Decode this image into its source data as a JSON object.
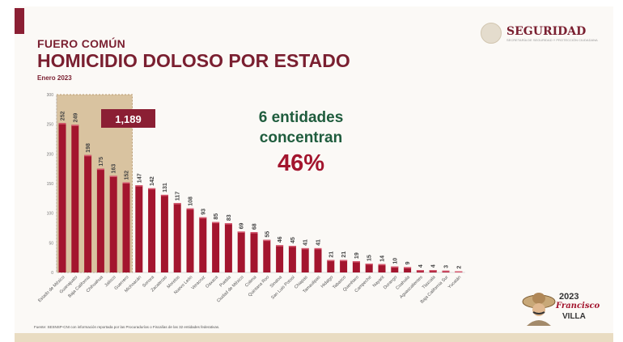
{
  "header": {
    "kicker": "FUERO COMÚN",
    "title": "HOMICIDIO DOLOSO POR ESTADO",
    "subtitle": "Enero 2023"
  },
  "logo": {
    "name": "SEGURIDAD",
    "sub": "SECRETARÍA DE SEGURIDAD Y PROTECCIÓN CIUDADANA"
  },
  "conclusion": {
    "line1": "6 entidades",
    "line2": "concentran",
    "percent": "46%"
  },
  "highlight": {
    "total": "1,189",
    "count": 6
  },
  "source": "Fuente: SESNSP-CNI con información reportada por las Procuradurías o Fiscalías de las 32 entidades federativas.",
  "badge": {
    "year": "2023",
    "name1": "Francisco",
    "name2": "VILLA"
  },
  "colors": {
    "bar": "#a3152e",
    "highlight": "#d9c3a0",
    "title": "#7a1f30",
    "green": "#1f5c3d"
  },
  "chart_data": {
    "type": "bar",
    "title": "HOMICIDIO DOLOSO POR ESTADO",
    "xlabel": "",
    "ylabel": "",
    "ylim": [
      0,
      300
    ],
    "yticks": [
      0,
      50,
      100,
      150,
      200,
      250,
      300
    ],
    "categories": [
      "Estado de México",
      "Guanajuato",
      "Baja California",
      "Chihuahua",
      "Jalisco",
      "Guerrero",
      "Michoacán",
      "Sonora",
      "Zacatecas",
      "Morelos",
      "Nuevo León",
      "Veracruz",
      "Oaxaca",
      "Puebla",
      "Ciudad de México",
      "Colima",
      "Quintana Roo",
      "Sinaloa",
      "San Luis Potosí",
      "Chiapas",
      "Tamaulipas",
      "Hidalgo",
      "Tabasco",
      "Querétaro",
      "Campeche",
      "Nayarit",
      "Durango",
      "Coahuila",
      "Aguascalientes",
      "Tlaxcala",
      "Baja California Sur",
      "Yucatán"
    ],
    "values": [
      252,
      249,
      198,
      175,
      163,
      152,
      147,
      142,
      131,
      117,
      108,
      93,
      85,
      83,
      69,
      68,
      55,
      46,
      45,
      41,
      41,
      21,
      21,
      19,
      15,
      14,
      10,
      9,
      4,
      4,
      3,
      2
    ]
  }
}
